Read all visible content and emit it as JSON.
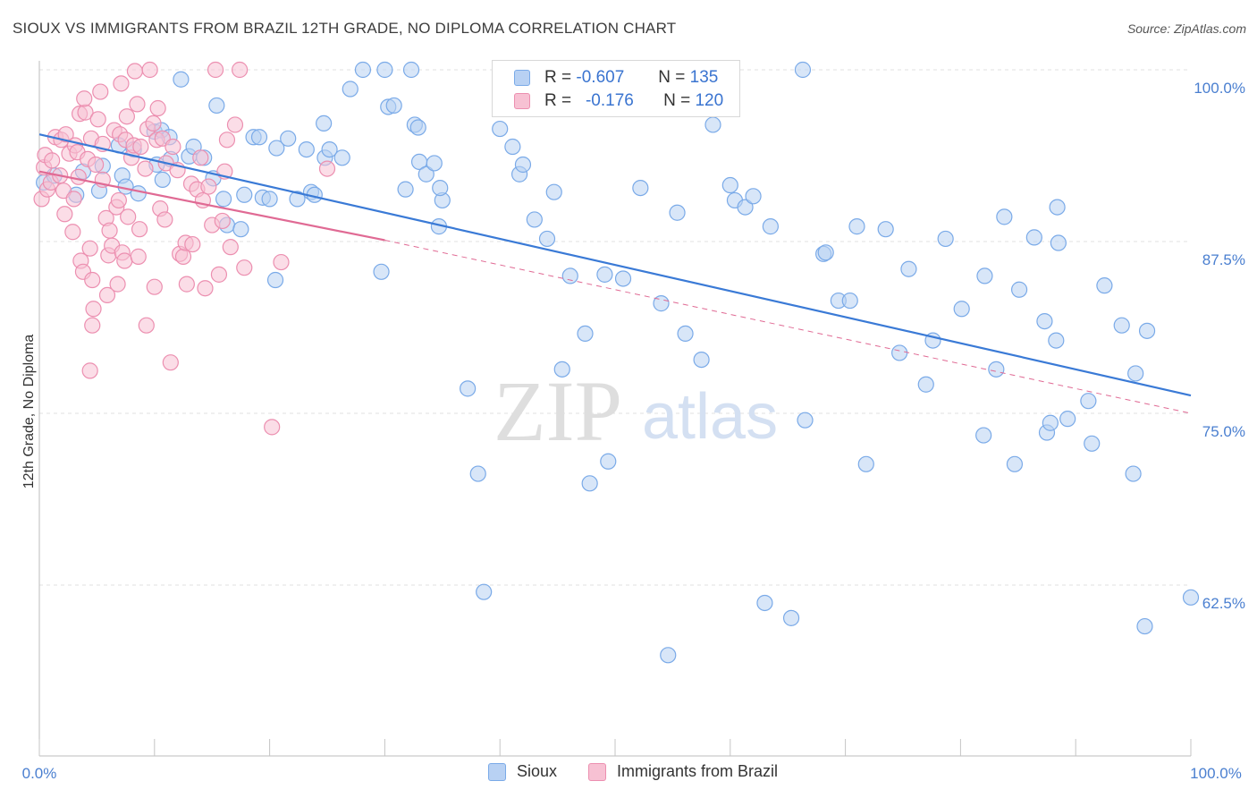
{
  "title": "SIOUX VS IMMIGRANTS FROM BRAZIL 12TH GRADE, NO DIPLOMA CORRELATION CHART",
  "source": "Source: ZipAtlas.com",
  "watermark": {
    "zip": "ZIP",
    "atlas": "atlas"
  },
  "legend_stats": [
    {
      "r_label": "R =",
      "r_value": "-0.607",
      "n_label": "N =",
      "n_value": "135"
    },
    {
      "r_label": "R =",
      "r_value": "-0.176",
      "n_label": "N =",
      "n_value": "120"
    }
  ],
  "chart_data": {
    "type": "scatter",
    "title": "SIOUX VS IMMIGRANTS FROM BRAZIL 12TH GRADE, NO DIPLOMA CORRELATION CHART",
    "xlabel": "",
    "ylabel": "12th Grade, No Diploma",
    "xlim": [
      0,
      100
    ],
    "ylim": [
      50,
      100
    ],
    "x_tick_labels": [
      "0.0%",
      "100.0%"
    ],
    "y_ticks": [
      62.5,
      75.0,
      87.5,
      100.0
    ],
    "y_tick_labels": [
      "62.5%",
      "75.0%",
      "87.5%",
      "100.0%"
    ],
    "grid": "horizontal dashed",
    "legend_position": "bottom-center",
    "series": [
      {
        "name": "Sioux",
        "color": "#7aaae8",
        "fill": "#b8d1f3",
        "trend": {
          "x0": 0,
          "y0": 95.3,
          "x1": 100,
          "y1": 76.3,
          "style": "solid",
          "color": "#3a7ad6"
        },
        "points": [
          [
            0.4,
            91.8
          ],
          [
            1.3,
            92.3
          ],
          [
            3.2,
            90.9
          ],
          [
            3.8,
            92.6
          ],
          [
            5.5,
            93.0
          ],
          [
            5.2,
            91.2
          ],
          [
            6.9,
            94.5
          ],
          [
            7.2,
            92.3
          ],
          [
            7.5,
            91.5
          ],
          [
            8.6,
            91.0
          ],
          [
            8.2,
            94.2
          ],
          [
            10.2,
            93.1
          ],
          [
            10.7,
            92.0
          ],
          [
            11.4,
            93.5
          ],
          [
            13.0,
            93.7
          ],
          [
            10.0,
            95.5
          ],
          [
            10.6,
            95.6
          ],
          [
            11.3,
            95.1
          ],
          [
            12.3,
            99.3
          ],
          [
            13.4,
            94.4
          ],
          [
            14.3,
            93.6
          ],
          [
            15.1,
            92.1
          ],
          [
            15.4,
            97.4
          ],
          [
            16.0,
            90.6
          ],
          [
            16.3,
            88.7
          ],
          [
            17.5,
            88.4
          ],
          [
            17.8,
            90.9
          ],
          [
            18.6,
            95.1
          ],
          [
            19.1,
            95.1
          ],
          [
            19.4,
            90.7
          ],
          [
            20.0,
            90.6
          ],
          [
            20.5,
            84.7
          ],
          [
            20.6,
            94.3
          ],
          [
            21.6,
            95.0
          ],
          [
            22.4,
            90.6
          ],
          [
            23.2,
            94.2
          ],
          [
            23.6,
            91.1
          ],
          [
            23.9,
            90.9
          ],
          [
            24.7,
            96.1
          ],
          [
            24.8,
            93.6
          ],
          [
            25.2,
            94.2
          ],
          [
            26.3,
            93.6
          ],
          [
            27.0,
            98.6
          ],
          [
            28.1,
            100
          ],
          [
            30.0,
            100
          ],
          [
            29.7,
            85.3
          ],
          [
            30.3,
            97.3
          ],
          [
            30.8,
            97.4
          ],
          [
            31.8,
            91.3
          ],
          [
            32.3,
            100
          ],
          [
            32.6,
            96.0
          ],
          [
            33.0,
            93.3
          ],
          [
            32.9,
            95.8
          ],
          [
            33.6,
            92.4
          ],
          [
            34.3,
            93.2
          ],
          [
            34.7,
            88.6
          ],
          [
            35.0,
            90.5
          ],
          [
            34.8,
            91.4
          ],
          [
            37.2,
            76.8
          ],
          [
            38.1,
            70.6
          ],
          [
            38.6,
            62.0
          ],
          [
            40.0,
            95.7
          ],
          [
            41.1,
            94.4
          ],
          [
            41.7,
            92.4
          ],
          [
            42.0,
            93.1
          ],
          [
            43.0,
            89.1
          ],
          [
            44.1,
            87.7
          ],
          [
            44.7,
            91.1
          ],
          [
            45.4,
            78.2
          ],
          [
            46.1,
            85.0
          ],
          [
            47.4,
            80.8
          ],
          [
            47.8,
            69.9
          ],
          [
            49.1,
            85.1
          ],
          [
            49.4,
            71.5
          ],
          [
            50.7,
            84.8
          ],
          [
            52.2,
            91.4
          ],
          [
            54.0,
            83.0
          ],
          [
            54.6,
            57.4
          ],
          [
            55.4,
            89.6
          ],
          [
            56.1,
            80.8
          ],
          [
            57.5,
            78.9
          ],
          [
            58.5,
            96.0
          ],
          [
            60.0,
            91.6
          ],
          [
            60.4,
            90.5
          ],
          [
            61.3,
            90.0
          ],
          [
            62.0,
            90.8
          ],
          [
            63.0,
            61.2
          ],
          [
            63.5,
            88.6
          ],
          [
            65.3,
            60.1
          ],
          [
            66.3,
            100
          ],
          [
            66.5,
            74.5
          ],
          [
            68.1,
            86.6
          ],
          [
            68.3,
            86.7
          ],
          [
            69.4,
            83.2
          ],
          [
            70.4,
            83.2
          ],
          [
            71.0,
            88.6
          ],
          [
            71.8,
            71.3
          ],
          [
            73.5,
            88.4
          ],
          [
            74.7,
            79.4
          ],
          [
            75.5,
            85.5
          ],
          [
            77.0,
            77.1
          ],
          [
            77.6,
            80.3
          ],
          [
            78.7,
            87.7
          ],
          [
            80.1,
            82.6
          ],
          [
            82.0,
            73.4
          ],
          [
            82.1,
            85.0
          ],
          [
            83.1,
            78.2
          ],
          [
            83.8,
            89.3
          ],
          [
            84.7,
            71.3
          ],
          [
            85.1,
            84.0
          ],
          [
            86.4,
            87.8
          ],
          [
            87.3,
            81.7
          ],
          [
            87.5,
            73.6
          ],
          [
            87.8,
            74.3
          ],
          [
            88.3,
            80.3
          ],
          [
            88.4,
            90.0
          ],
          [
            88.5,
            87.4
          ],
          [
            89.3,
            74.6
          ],
          [
            91.1,
            75.9
          ],
          [
            91.4,
            72.8
          ],
          [
            92.5,
            84.3
          ],
          [
            94.0,
            81.4
          ],
          [
            95.0,
            70.6
          ],
          [
            95.2,
            77.9
          ],
          [
            96.0,
            59.5
          ],
          [
            96.2,
            81.0
          ],
          [
            100,
            61.6
          ]
        ]
      },
      {
        "name": "Immigrants from Brazil",
        "color": "#ec8fb0",
        "fill": "#f7c1d3",
        "trend": {
          "x0": 0,
          "y0": 92.6,
          "x1": 30,
          "y1": 87.6,
          "x2": 100,
          "y2": 75.0,
          "style": "solid then dashed",
          "color": "#e06a94"
        },
        "points": [
          [
            0.2,
            90.6
          ],
          [
            0.4,
            92.9
          ],
          [
            0.5,
            93.8
          ],
          [
            0.7,
            91.3
          ],
          [
            1.0,
            91.8
          ],
          [
            1.1,
            93.4
          ],
          [
            1.4,
            95.1
          ],
          [
            1.8,
            92.3
          ],
          [
            1.9,
            94.9
          ],
          [
            2.1,
            91.2
          ],
          [
            2.3,
            95.3
          ],
          [
            2.2,
            89.5
          ],
          [
            2.6,
            93.9
          ],
          [
            2.9,
            88.2
          ],
          [
            3.1,
            94.5
          ],
          [
            3.3,
            94.0
          ],
          [
            3.0,
            90.6
          ],
          [
            3.4,
            92.2
          ],
          [
            3.5,
            96.8
          ],
          [
            3.6,
            86.1
          ],
          [
            3.8,
            85.3
          ],
          [
            4.0,
            96.9
          ],
          [
            3.9,
            97.9
          ],
          [
            4.2,
            93.5
          ],
          [
            4.5,
            95.0
          ],
          [
            4.4,
            87.0
          ],
          [
            4.6,
            84.7
          ],
          [
            4.4,
            78.1
          ],
          [
            4.7,
            82.6
          ],
          [
            4.6,
            81.4
          ],
          [
            4.9,
            93.1
          ],
          [
            5.1,
            96.4
          ],
          [
            5.3,
            98.4
          ],
          [
            5.5,
            94.6
          ],
          [
            5.5,
            92.0
          ],
          [
            5.8,
            89.2
          ],
          [
            5.9,
            83.6
          ],
          [
            6.0,
            86.5
          ],
          [
            6.1,
            88.3
          ],
          [
            6.3,
            87.2
          ],
          [
            6.5,
            95.6
          ],
          [
            6.7,
            90.0
          ],
          [
            6.8,
            84.4
          ],
          [
            6.9,
            90.5
          ],
          [
            7.0,
            95.3
          ],
          [
            7.1,
            99.0
          ],
          [
            7.2,
            86.7
          ],
          [
            7.4,
            86.1
          ],
          [
            7.5,
            94.9
          ],
          [
            7.7,
            89.3
          ],
          [
            7.6,
            96.6
          ],
          [
            8.0,
            93.6
          ],
          [
            8.2,
            94.5
          ],
          [
            8.3,
            99.9
          ],
          [
            8.5,
            97.5
          ],
          [
            8.6,
            86.4
          ],
          [
            8.7,
            88.4
          ],
          [
            8.8,
            94.4
          ],
          [
            9.2,
            92.8
          ],
          [
            9.4,
            95.7
          ],
          [
            9.3,
            81.4
          ],
          [
            9.6,
            100
          ],
          [
            9.9,
            96.1
          ],
          [
            10.0,
            84.2
          ],
          [
            10.2,
            94.9
          ],
          [
            10.3,
            97.2
          ],
          [
            10.5,
            89.9
          ],
          [
            10.7,
            95.0
          ],
          [
            10.9,
            89.1
          ],
          [
            11.0,
            93.2
          ],
          [
            11.4,
            78.7
          ],
          [
            11.6,
            94.4
          ],
          [
            12.0,
            92.7
          ],
          [
            12.2,
            86.6
          ],
          [
            12.5,
            86.4
          ],
          [
            12.7,
            87.4
          ],
          [
            12.8,
            84.4
          ],
          [
            13.2,
            91.7
          ],
          [
            13.3,
            87.3
          ],
          [
            13.7,
            91.3
          ],
          [
            14.0,
            93.6
          ],
          [
            14.2,
            90.5
          ],
          [
            14.4,
            84.1
          ],
          [
            14.7,
            91.5
          ],
          [
            15.0,
            88.7
          ],
          [
            15.3,
            100
          ],
          [
            15.6,
            85.1
          ],
          [
            15.9,
            89.0
          ],
          [
            16.1,
            92.6
          ],
          [
            16.3,
            94.9
          ],
          [
            16.6,
            87.1
          ],
          [
            17.0,
            96.0
          ],
          [
            17.4,
            100
          ],
          [
            17.8,
            85.6
          ],
          [
            20.2,
            74.0
          ],
          [
            21.0,
            86.0
          ],
          [
            25.0,
            92.8
          ]
        ]
      }
    ]
  },
  "bottom_legend": [
    {
      "label": "Sioux"
    },
    {
      "label": "Immigrants from Brazil"
    }
  ]
}
